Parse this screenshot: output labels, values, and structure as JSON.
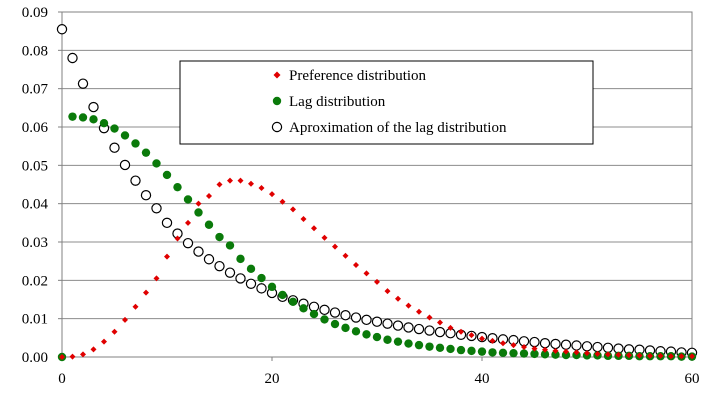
{
  "colors": {
    "preference": "#e00000",
    "lag": "#0a7a0a",
    "approx_stroke": "#000000",
    "approx_fill": "#ffffff",
    "grid": "#8c8c8c"
  },
  "chart_data": {
    "type": "scatter",
    "title": "",
    "xlabel": "",
    "ylabel": "",
    "xlim": [
      0,
      60
    ],
    "ylim": [
      0,
      0.09
    ],
    "x_ticks": [
      "0",
      "20",
      "40",
      "60"
    ],
    "y_ticks": [
      "0.00",
      "0.01",
      "0.02",
      "0.03",
      "0.04",
      "0.05",
      "0.06",
      "0.07",
      "0.08",
      "0.09"
    ],
    "grid": "horizontal",
    "legend_position": "top-right",
    "series": [
      {
        "name": "Preference distribution",
        "marker": "diamond",
        "x": [
          0,
          1,
          2,
          3,
          4,
          5,
          6,
          7,
          8,
          9,
          10,
          11,
          12,
          13,
          14,
          15,
          16,
          17,
          18,
          19,
          20,
          21,
          22,
          23,
          24,
          25,
          26,
          27,
          28,
          29,
          30,
          31,
          32,
          33,
          34,
          35,
          36,
          37,
          38,
          39,
          40,
          41,
          42,
          43,
          44,
          45,
          46,
          47,
          48,
          49,
          50,
          51,
          52,
          53,
          54,
          55,
          56,
          57,
          58,
          59,
          60
        ],
        "y": [
          0.0,
          0.0001,
          0.0007,
          0.002,
          0.004,
          0.0066,
          0.0097,
          0.0131,
          0.0168,
          0.0205,
          0.0262,
          0.0309,
          0.035,
          0.04,
          0.042,
          0.045,
          0.046,
          0.046,
          0.0452,
          0.0441,
          0.0425,
          0.0405,
          0.0385,
          0.036,
          0.0336,
          0.0311,
          0.0288,
          0.0264,
          0.024,
          0.0218,
          0.0196,
          0.0172,
          0.0152,
          0.0134,
          0.0118,
          0.0103,
          0.009,
          0.0076,
          0.0066,
          0.0057,
          0.0048,
          0.0042,
          0.0036,
          0.0031,
          0.0026,
          0.0022,
          0.0019,
          0.0016,
          0.0014,
          0.0012,
          0.001,
          0.0008,
          0.0007,
          0.0006,
          0.0005,
          0.0004,
          0.0003,
          0.0003,
          0.0002,
          0.0002,
          0.0002
        ]
      },
      {
        "name": "Lag distribution",
        "marker": "filled-circle",
        "x": [
          0,
          1,
          2,
          3,
          4,
          5,
          6,
          7,
          8,
          9,
          10,
          11,
          12,
          13,
          14,
          15,
          16,
          17,
          18,
          19,
          20,
          21,
          22,
          23,
          24,
          25,
          26,
          27,
          28,
          29,
          30,
          31,
          32,
          33,
          34,
          35,
          36,
          37,
          38,
          39,
          40,
          41,
          42,
          43,
          44,
          45,
          46,
          47,
          48,
          49,
          50,
          51,
          52,
          53,
          54,
          55,
          56,
          57,
          58,
          59,
          60
        ],
        "y": [
          0.0,
          0.0627,
          0.0625,
          0.062,
          0.061,
          0.0596,
          0.0578,
          0.0557,
          0.0533,
          0.0505,
          0.0475,
          0.0443,
          0.0411,
          0.0377,
          0.0345,
          0.0313,
          0.0291,
          0.0256,
          0.023,
          0.0206,
          0.0183,
          0.0162,
          0.0144,
          0.0127,
          0.0112,
          0.0098,
          0.0086,
          0.0076,
          0.0067,
          0.0059,
          0.0052,
          0.0045,
          0.004,
          0.0035,
          0.0031,
          0.0027,
          0.0024,
          0.0021,
          0.0018,
          0.0016,
          0.0014,
          0.0012,
          0.0011,
          0.001,
          0.0009,
          0.0008,
          0.0007,
          0.0006,
          0.0005,
          0.0005,
          0.0004,
          0.0004,
          0.0003,
          0.0003,
          0.0003,
          0.0002,
          0.0002,
          0.0002,
          0.0002,
          0.0001,
          0.0001
        ]
      },
      {
        "name": "Aproximation of the lag distribution",
        "marker": "open-circle",
        "x": [
          0,
          1,
          2,
          3,
          4,
          5,
          6,
          7,
          8,
          9,
          10,
          11,
          12,
          13,
          14,
          15,
          16,
          17,
          18,
          19,
          20,
          21,
          22,
          23,
          24,
          25,
          26,
          27,
          28,
          29,
          30,
          31,
          32,
          33,
          34,
          35,
          36,
          37,
          38,
          39,
          40,
          41,
          42,
          43,
          44,
          45,
          46,
          47,
          48,
          49,
          50,
          51,
          52,
          53,
          54,
          55,
          56,
          57,
          58,
          59,
          60
        ],
        "y": [
          0.0855,
          0.078,
          0.0713,
          0.0652,
          0.0597,
          0.0546,
          0.0501,
          0.046,
          0.0422,
          0.0388,
          0.035,
          0.0322,
          0.0297,
          0.0275,
          0.0255,
          0.0237,
          0.022,
          0.0205,
          0.0191,
          0.0179,
          0.0167,
          0.0157,
          0.0148,
          0.0139,
          0.0131,
          0.0123,
          0.0116,
          0.0109,
          0.0103,
          0.0097,
          0.0092,
          0.0087,
          0.0082,
          0.0077,
          0.0073,
          0.0069,
          0.0065,
          0.0062,
          0.0058,
          0.0055,
          0.0052,
          0.0049,
          0.0046,
          0.0044,
          0.0041,
          0.0039,
          0.0036,
          0.0034,
          0.0032,
          0.003,
          0.0028,
          0.0026,
          0.0024,
          0.0022,
          0.002,
          0.0019,
          0.0017,
          0.0015,
          0.0014,
          0.0012,
          0.0011
        ]
      }
    ]
  }
}
